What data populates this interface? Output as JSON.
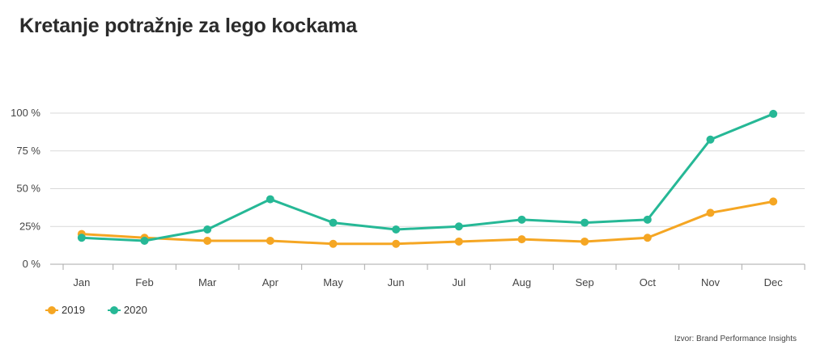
{
  "chart_data": {
    "type": "line",
    "title": "Kretanje potražnje za lego kockama",
    "categories": [
      "Jan",
      "Feb",
      "Mar",
      "Apr",
      "May",
      "Jun",
      "Jul",
      "Aug",
      "Sep",
      "Oct",
      "Nov",
      "Dec"
    ],
    "series": [
      {
        "name": "2019",
        "color": "#f5a623",
        "values": [
          20,
          17.5,
          15.5,
          15.5,
          13.5,
          13.5,
          15,
          16.5,
          15,
          17.5,
          34,
          41.5
        ]
      },
      {
        "name": "2020",
        "color": "#26b896",
        "values": [
          17.5,
          15.5,
          23,
          43,
          27.5,
          23,
          25,
          29.5,
          27.5,
          29.5,
          82.5,
          99.5
        ]
      }
    ],
    "y_ticks": [
      {
        "value": 0,
        "label": "0 %"
      },
      {
        "value": 25,
        "label": "25%"
      },
      {
        "value": 50,
        "label": "50 %"
      },
      {
        "value": 75,
        "label": "75 %"
      },
      {
        "value": 100,
        "label": "100 %"
      }
    ],
    "ylim": [
      0,
      100
    ],
    "xlabel": "",
    "ylabel": "",
    "grid": true,
    "legend_position": "bottom-left",
    "source": "Izvor: Brand Performance Insights"
  }
}
